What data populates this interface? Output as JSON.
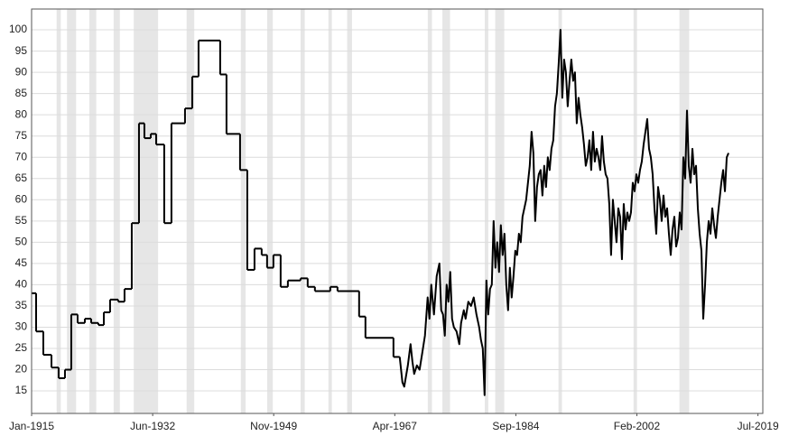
{
  "chart_data": {
    "type": "line",
    "xlim": [
      1915,
      2020.2
    ],
    "ylim": [
      9.7,
      104.9
    ],
    "xticks": [
      {
        "value": 1915,
        "label": "Jan-1915"
      },
      {
        "value": 1932.42,
        "label": "Jun-1932"
      },
      {
        "value": 1949.83,
        "label": "Nov-1949"
      },
      {
        "value": 1967.25,
        "label": "Apr-1967"
      },
      {
        "value": 1984.67,
        "label": "Sep-1984"
      },
      {
        "value": 2002.08,
        "label": "Feb-2002"
      },
      {
        "value": 2019.5,
        "label": "Jul-2019"
      }
    ],
    "yticks": [
      15,
      20,
      25,
      30,
      35,
      40,
      45,
      50,
      55,
      60,
      65,
      70,
      75,
      80,
      85,
      90,
      95,
      100
    ],
    "grid": true,
    "shade_color": "#e6e6e6",
    "shaded_periods": [
      [
        1918.6,
        1919.2
      ],
      [
        1920.1,
        1921.4
      ],
      [
        1923.3,
        1924.3
      ],
      [
        1926.8,
        1927.7
      ],
      [
        1929.7,
        1933.2
      ],
      [
        1937.3,
        1938.4
      ],
      [
        1945.1,
        1945.8
      ],
      [
        1948.9,
        1949.7
      ],
      [
        1953.7,
        1954.3
      ],
      [
        1957.7,
        1958.2
      ],
      [
        1960.4,
        1961.1
      ],
      [
        1972.0,
        1972.6
      ],
      [
        1974.1,
        1975.2
      ],
      [
        1980.2,
        1980.7
      ],
      [
        1981.7,
        1983.0
      ],
      [
        1990.8,
        1991.3
      ],
      [
        2001.6,
        2002.1
      ],
      [
        2008.2,
        2009.6
      ]
    ],
    "series": [
      {
        "color": "#000000",
        "drawstyle": "steps-post",
        "x": [
          1915.0,
          1915.65,
          1916.69,
          1917.86,
          1918.89,
          1919.8,
          1920.71,
          1921.62,
          1922.66,
          1923.57,
          1924.61,
          1925.39,
          1926.29,
          1927.46,
          1928.37,
          1929.41,
          1930.45,
          1931.23,
          1932.14,
          1932.92,
          1934.08,
          1935.12,
          1937.07,
          1938.11,
          1939.02,
          1942.13,
          1943.04,
          1944.99,
          1946.03,
          1947.07,
          1948.1,
          1948.88,
          1949.79,
          1950.83,
          1951.87,
          1953.69,
          1954.72,
          1955.76,
          1957.97,
          1959.01,
          1962.12,
          1963.03,
          1967.06,
          1967.96
        ],
        "values": [
          38,
          29,
          23.5,
          20.5,
          18,
          20,
          33,
          31,
          32,
          31,
          30.5,
          33.5,
          36.5,
          36,
          39,
          54.5,
          78,
          74.5,
          75.5,
          73,
          54.5,
          78,
          81.5,
          89,
          97.5,
          89.5,
          75.5,
          67,
          43.5,
          48.5,
          47,
          44,
          47,
          39.5,
          41,
          41.5,
          39.5,
          38.5,
          39.5,
          38.5,
          32.5,
          27.5,
          23,
          23
        ]
      },
      {
        "color": "#000000",
        "drawstyle": "default",
        "x": [
          1967.96,
          1968.35,
          1968.61,
          1969.13,
          1969.52,
          1969.78,
          1970.04,
          1970.43,
          1970.82,
          1971.21,
          1971.59,
          1971.98,
          1972.24,
          1972.5,
          1972.89,
          1973.28,
          1973.67,
          1973.93,
          1974.19,
          1974.45,
          1974.71,
          1974.97,
          1975.23,
          1975.49,
          1975.75,
          1976.14,
          1976.53,
          1976.79,
          1977.18,
          1977.44,
          1977.83,
          1978.22,
          1978.61,
          1979.0,
          1979.39,
          1979.65,
          1979.91,
          1980.17,
          1980.43,
          1980.69,
          1980.95,
          1981.21,
          1981.47,
          1981.73,
          1981.99,
          1982.25,
          1982.51,
          1982.77,
          1983.03,
          1983.29,
          1983.55,
          1983.81,
          1984.07,
          1984.33,
          1984.59,
          1984.85,
          1985.11,
          1985.37,
          1985.63,
          1985.89,
          1986.15,
          1986.41,
          1986.67,
          1986.93,
          1987.19,
          1987.45,
          1987.71,
          1987.97,
          1988.23,
          1988.49,
          1988.75,
          1989.01,
          1989.27,
          1989.53,
          1989.79,
          1990.05,
          1990.31,
          1990.57,
          1990.83,
          1991.09,
          1991.35,
          1991.61,
          1991.87,
          1992.13,
          1992.39,
          1992.65,
          1992.91,
          1993.17,
          1993.43,
          1993.69,
          1993.95,
          1994.21,
          1994.47,
          1994.73,
          1994.99,
          1995.25,
          1995.51,
          1995.77,
          1996.03,
          1996.29,
          1996.55,
          1996.81,
          1997.07,
          1997.33,
          1997.59,
          1997.85,
          1998.11,
          1998.37,
          1998.63,
          1998.89,
          1999.15,
          1999.41,
          1999.67,
          1999.93,
          2000.19,
          2000.45,
          2000.71,
          2000.97,
          2001.23,
          2001.49,
          2001.75,
          2002.01,
          2002.27,
          2002.53,
          2002.79,
          2003.05,
          2003.31,
          2003.57,
          2003.83,
          2004.09,
          2004.35,
          2004.61,
          2004.87,
          2005.13,
          2005.39,
          2005.65,
          2005.91,
          2006.17,
          2006.43,
          2006.69,
          2006.95,
          2007.21,
          2007.47,
          2007.73,
          2007.99,
          2008.25,
          2008.51,
          2008.77,
          2009.03,
          2009.29,
          2009.55,
          2009.81,
          2010.07,
          2010.33,
          2010.59,
          2010.85,
          2011.11,
          2011.37,
          2011.63,
          2011.89,
          2012.15,
          2012.41,
          2012.67,
          2012.93,
          2013.19,
          2013.45,
          2013.71,
          2013.97,
          2014.23,
          2014.49,
          2014.75,
          2015.01,
          2015.27
        ],
        "values": [
          23,
          17,
          16,
          21,
          26,
          22,
          19,
          21,
          20,
          24,
          28,
          37,
          32,
          40,
          33,
          42,
          45,
          34,
          33,
          28,
          40,
          36,
          43,
          32,
          30,
          29,
          26,
          31,
          34,
          32,
          36,
          35,
          37,
          33,
          30,
          27,
          25,
          14,
          41,
          33,
          39,
          40,
          55,
          44,
          50,
          43,
          54,
          47,
          52,
          40,
          34,
          44,
          37,
          42,
          48,
          47,
          52,
          50,
          56,
          58,
          60,
          64,
          68,
          76,
          71,
          55,
          63,
          66,
          67,
          61,
          68,
          63,
          70,
          67,
          72,
          74,
          82,
          85,
          92,
          100,
          84,
          93,
          90,
          82,
          88,
          93,
          88,
          90,
          78,
          84,
          80,
          77,
          73,
          68,
          70,
          74,
          67,
          76,
          69,
          72,
          70,
          67,
          75,
          69,
          66,
          65,
          59,
          47,
          60,
          55,
          50,
          58,
          56,
          46,
          59,
          53,
          57,
          55,
          57,
          64,
          62,
          66,
          64,
          67,
          69,
          73,
          76,
          79,
          72,
          70,
          66,
          58,
          52,
          63,
          60,
          55,
          61,
          56,
          58,
          52,
          47,
          53,
          56,
          49,
          51,
          57,
          53,
          70,
          65,
          81,
          68,
          64,
          72,
          66,
          68,
          58,
          52,
          48,
          32,
          40,
          50,
          55,
          52,
          58,
          54,
          51,
          56,
          60,
          64,
          67,
          62,
          70,
          71
        ]
      }
    ]
  }
}
